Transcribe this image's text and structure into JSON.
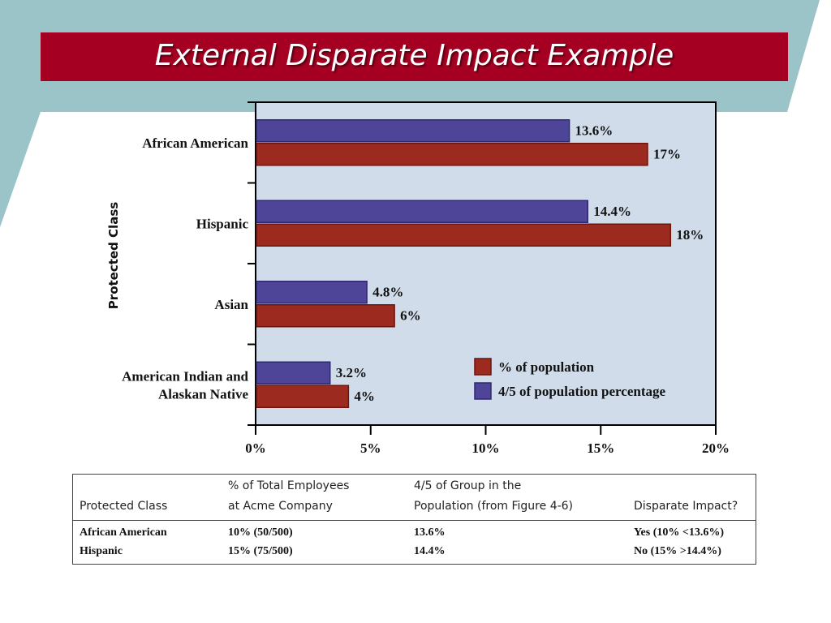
{
  "slide": {
    "title": "External Disparate Impact Example",
    "colors": {
      "title_bar": "#a50022",
      "teal_band": "#9bc4c9",
      "plot_bg": "#d0dcea"
    }
  },
  "chart_data": {
    "type": "bar",
    "orientation": "horizontal",
    "ylabel": "Protected Class",
    "categories": [
      "African American",
      "Hispanic",
      "Asian",
      "American Indian and Alaskan Native"
    ],
    "category_lines": [
      [
        "African American"
      ],
      [
        "Hispanic"
      ],
      [
        "Asian"
      ],
      [
        "American Indian and",
        "Alaskan Native"
      ]
    ],
    "series": [
      {
        "name": "4/5 of population percentage",
        "values": [
          13.6,
          14.4,
          4.8,
          3.2
        ],
        "labels": [
          "13.6%",
          "14.4%",
          "4.8%",
          "3.2%"
        ],
        "color": "#4e4598"
      },
      {
        "name": "% of population",
        "values": [
          17,
          18,
          6,
          4
        ],
        "labels": [
          "17%",
          "18%",
          "6%",
          "4%"
        ],
        "color": "#9c2a1e"
      }
    ],
    "xlim": [
      0,
      20
    ],
    "xticks": [
      0,
      5,
      10,
      15,
      20
    ],
    "xtick_labels": [
      "0%",
      "5%",
      "10%",
      "15%",
      "20%"
    ],
    "legend": {
      "placement": "bottom-right",
      "entries": [
        "% of population",
        "4/5 of population percentage"
      ]
    },
    "grid": false
  },
  "table": {
    "headers": {
      "protected_class": "Protected Class",
      "pct_employees_line1": "% of Total Employees",
      "pct_employees_line2": "at Acme Company",
      "four_fifths_line1": "4/5 of Group in the",
      "four_fifths_line2": "Population (from Figure 4-6)",
      "disparate_impact": "Disparate Impact?"
    },
    "rows": [
      {
        "protected_class": "African American",
        "pct_employees": "10% (50/500)",
        "four_fifths": "13.6%",
        "disparate_impact": "Yes (10% <13.6%)"
      },
      {
        "protected_class": "Hispanic",
        "pct_employees": "15% (75/500)",
        "four_fifths": "14.4%",
        "disparate_impact": "No (15% >14.4%)"
      }
    ]
  }
}
